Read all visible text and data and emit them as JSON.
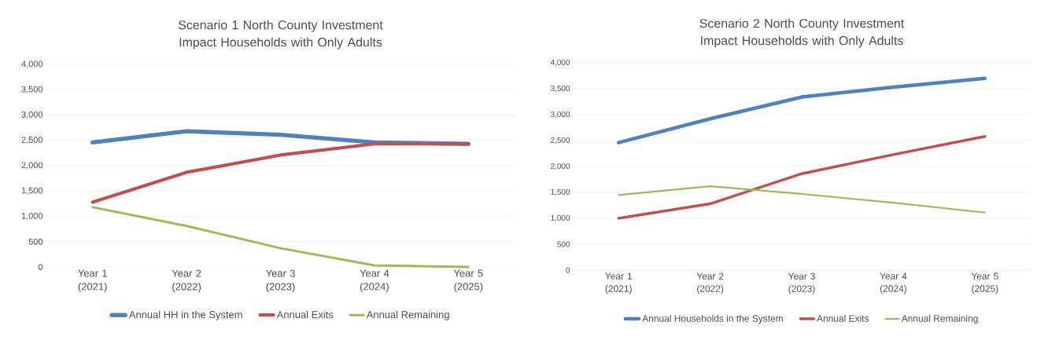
{
  "chart_data": [
    {
      "type": "line",
      "title": "Scenario 1 North County Investment Impact Households with Only Adults",
      "categories": [
        "Year 1 (2021)",
        "Year 2 (2022)",
        "Year 3 (2023)",
        "Year 4 (2024)",
        "Year 5 (2025)"
      ],
      "series": [
        {
          "name": "Annual HH in the System",
          "color": "#4f81bd",
          "values": [
            2460,
            2680,
            2610,
            2460,
            2430
          ]
        },
        {
          "name": "Annual Exits",
          "color": "#c0504d",
          "values": [
            1280,
            1870,
            2210,
            2430,
            2430
          ]
        },
        {
          "name": "Annual Remaining",
          "color": "#9bbb59",
          "values": [
            1180,
            810,
            370,
            30,
            0
          ]
        }
      ],
      "ylim": [
        0,
        4000
      ],
      "yticks": [
        0,
        500,
        {
          "value": 1000,
          "label": "1,000"
        },
        {
          "value": 1500,
          "label": "1,500"
        },
        {
          "value": 2000,
          "label": "2,000"
        },
        {
          "value": 2500,
          "label": "2,500"
        },
        {
          "value": 3000,
          "label": "3,000"
        },
        {
          "value": 3500,
          "label": "3,500"
        },
        {
          "value": 4000,
          "label": "4,000"
        }
      ],
      "grid": "y",
      "legend": "bottom"
    },
    {
      "type": "line",
      "title": "Scenario 2 North County Investment Impact Households with Only Adults",
      "categories": [
        "Year 1 (2021)",
        "Year 2 (2022)",
        "Year 3 (2023)",
        "Year 4 (2024)",
        "Year 5 (2025)"
      ],
      "series": [
        {
          "name": "Annual Households in the System",
          "color": "#4f81bd",
          "values": [
            2460,
            2920,
            3340,
            3530,
            3700
          ]
        },
        {
          "name": "Annual Exits",
          "color": "#c0504d",
          "values": [
            1000,
            1280,
            1860,
            2230,
            2580
          ]
        },
        {
          "name": "Annual Remaining",
          "color": "#9bbb59",
          "values": [
            1450,
            1620,
            1470,
            1300,
            1110
          ]
        }
      ],
      "ylim": [
        0,
        4000
      ],
      "yticks": [
        0,
        500,
        {
          "value": 1000,
          "label": "1,000"
        },
        {
          "value": 1500,
          "label": "1,500"
        },
        {
          "value": 2000,
          "label": "2,000"
        },
        {
          "value": 2500,
          "label": "2,500"
        },
        {
          "value": 3000,
          "label": "3,000"
        },
        {
          "value": 3500,
          "label": "3,500"
        },
        {
          "value": 4000,
          "label": "4,000"
        }
      ],
      "grid": "y",
      "legend": "bottom"
    }
  ]
}
